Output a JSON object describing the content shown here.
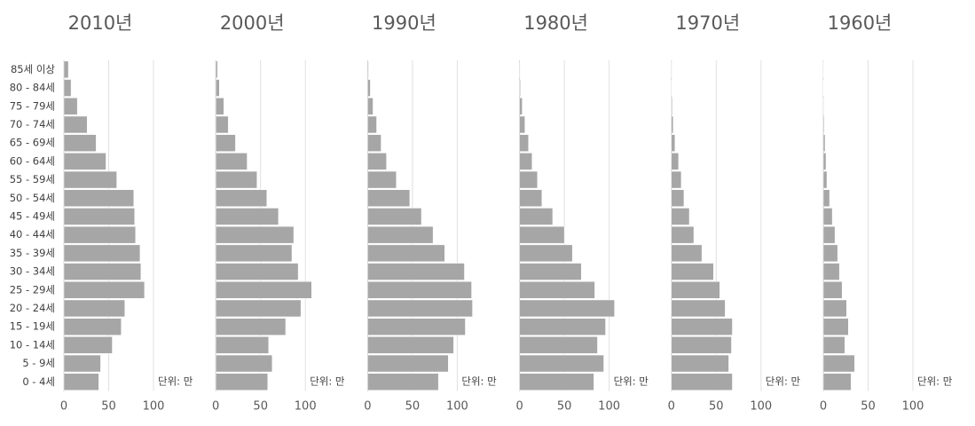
{
  "chart_data": {
    "type": "bar",
    "orientation": "horizontal",
    "color": "#a6a6a6",
    "grid": true,
    "unit_label": "단위: 만",
    "categories": [
      "85세 이상",
      "80 - 84세",
      "75 - 79세",
      "70 - 74세",
      "65 - 69세",
      "60 - 64세",
      "55 - 59세",
      "50 - 54세",
      "45 - 49세",
      "40 - 44세",
      "35 - 39세",
      "30 - 34세",
      "25 - 29세",
      "20 - 24세",
      "15 - 19세",
      "10 - 14세",
      "5 - 9세",
      "0 - 4세"
    ],
    "xlim": [
      0,
      100
    ],
    "xticks": [
      0,
      50,
      100
    ],
    "series": [
      {
        "name": "2010년",
        "values": [
          5,
          8,
          15,
          26,
          36,
          47,
          59,
          78,
          79,
          80,
          85,
          86,
          90,
          68,
          64,
          54,
          41,
          39
        ]
      },
      {
        "name": "2000년",
        "values": [
          2,
          4,
          9,
          14,
          22,
          35,
          46,
          57,
          70,
          87,
          85,
          92,
          107,
          95,
          78,
          59,
          63,
          58
        ]
      },
      {
        "name": "1990년",
        "values": [
          1,
          3,
          6,
          10,
          15,
          21,
          32,
          47,
          60,
          73,
          86,
          108,
          116,
          117,
          109,
          96,
          90,
          79
        ]
      },
      {
        "name": "1980년",
        "values": [
          0.5,
          1,
          3,
          6,
          10,
          14,
          20,
          25,
          37,
          50,
          59,
          69,
          84,
          106,
          96,
          87,
          94,
          83
        ]
      },
      {
        "name": "1970년",
        "values": [
          0.3,
          0.5,
          1,
          2,
          4,
          8,
          11,
          14,
          20,
          25,
          34,
          47,
          54,
          60,
          68,
          67,
          64,
          68
        ]
      },
      {
        "name": "1960년",
        "values": [
          0.2,
          0.3,
          0.5,
          1,
          2,
          3,
          4,
          7,
          10,
          13,
          16,
          18,
          21,
          26,
          28,
          24,
          35,
          31
        ]
      }
    ]
  }
}
